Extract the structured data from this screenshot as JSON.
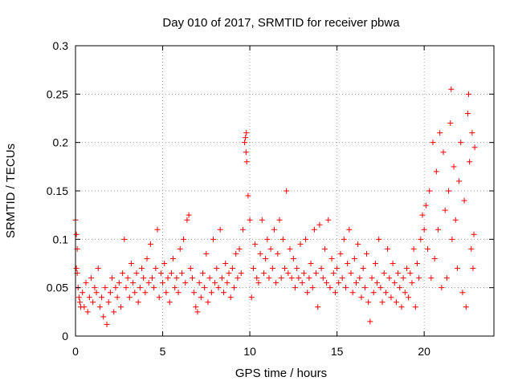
{
  "chart_data": {
    "type": "scatter",
    "title": "Day 010 of 2017, SRMTID for receiver pbwa",
    "xlabel": "GPS time / hours",
    "ylabel": "SRMTID / TECUs",
    "xlim": [
      0,
      24
    ],
    "ylim": [
      0,
      0.3
    ],
    "xticks": [
      0,
      5,
      10,
      15,
      20
    ],
    "yticks": [
      0,
      0.05,
      0.1,
      0.15,
      0.2,
      0.25,
      0.3
    ],
    "xtick_labels": [
      "0",
      "5",
      "10",
      "15",
      "20"
    ],
    "ytick_labels": [
      "0",
      "0.05",
      "0.1",
      "0.15",
      "0.2",
      "0.25",
      "0.3"
    ],
    "grid": true,
    "marker": "+",
    "color": "#ff0000",
    "series": [
      {
        "name": "SRMTID",
        "points": [
          [
            0.0,
            0.12
          ],
          [
            0.05,
            0.105
          ],
          [
            0.1,
            0.09
          ],
          [
            0.05,
            0.07
          ],
          [
            0.1,
            0.065
          ],
          [
            0.15,
            0.05
          ],
          [
            0.2,
            0.04
          ],
          [
            0.25,
            0.035
          ],
          [
            0.3,
            0.03
          ],
          [
            0.4,
            0.045
          ],
          [
            0.5,
            0.03
          ],
          [
            0.6,
            0.055
          ],
          [
            0.7,
            0.025
          ],
          [
            0.8,
            0.04
          ],
          [
            0.9,
            0.06
          ],
          [
            1.0,
            0.035
          ],
          [
            1.1,
            0.05
          ],
          [
            1.2,
            0.045
          ],
          [
            1.3,
            0.07
          ],
          [
            1.4,
            0.03
          ],
          [
            1.5,
            0.04
          ],
          [
            1.6,
            0.02
          ],
          [
            1.7,
            0.05
          ],
          [
            1.8,
            0.012
          ],
          [
            1.9,
            0.035
          ],
          [
            2.0,
            0.045
          ],
          [
            2.1,
            0.06
          ],
          [
            2.2,
            0.025
          ],
          [
            2.3,
            0.05
          ],
          [
            2.4,
            0.04
          ],
          [
            2.5,
            0.055
          ],
          [
            2.6,
            0.03
          ],
          [
            2.7,
            0.065
          ],
          [
            2.8,
            0.1
          ],
          [
            2.9,
            0.05
          ],
          [
            3.0,
            0.06
          ],
          [
            3.1,
            0.04
          ],
          [
            3.2,
            0.075
          ],
          [
            3.3,
            0.055
          ],
          [
            3.4,
            0.045
          ],
          [
            3.5,
            0.065
          ],
          [
            3.6,
            0.035
          ],
          [
            3.7,
            0.05
          ],
          [
            3.8,
            0.07
          ],
          [
            3.9,
            0.06
          ],
          [
            4.0,
            0.045
          ],
          [
            4.1,
            0.08
          ],
          [
            4.2,
            0.055
          ],
          [
            4.3,
            0.095
          ],
          [
            4.4,
            0.06
          ],
          [
            4.5,
            0.05
          ],
          [
            4.6,
            0.07
          ],
          [
            4.7,
            0.11
          ],
          [
            4.8,
            0.04
          ],
          [
            4.9,
            0.065
          ],
          [
            5.0,
            0.055
          ],
          [
            5.1,
            0.075
          ],
          [
            5.2,
            0.045
          ],
          [
            5.3,
            0.06
          ],
          [
            5.4,
            0.035
          ],
          [
            5.5,
            0.065
          ],
          [
            5.6,
            0.08
          ],
          [
            5.7,
            0.05
          ],
          [
            5.8,
            0.06
          ],
          [
            5.9,
            0.045
          ],
          [
            6.0,
            0.09
          ],
          [
            6.1,
            0.065
          ],
          [
            6.2,
            0.1
          ],
          [
            6.3,
            0.055
          ],
          [
            6.4,
            0.12
          ],
          [
            6.5,
            0.125
          ],
          [
            6.6,
            0.07
          ],
          [
            6.7,
            0.06
          ],
          [
            6.8,
            0.045
          ],
          [
            6.9,
            0.03
          ],
          [
            7.0,
            0.025
          ],
          [
            7.1,
            0.055
          ],
          [
            7.2,
            0.04
          ],
          [
            7.3,
            0.065
          ],
          [
            7.4,
            0.05
          ],
          [
            7.5,
            0.085
          ],
          [
            7.6,
            0.035
          ],
          [
            7.7,
            0.06
          ],
          [
            7.8,
            0.045
          ],
          [
            7.9,
            0.1
          ],
          [
            8.0,
            0.055
          ],
          [
            8.1,
            0.07
          ],
          [
            8.2,
            0.05
          ],
          [
            8.3,
            0.11
          ],
          [
            8.4,
            0.06
          ],
          [
            8.5,
            0.045
          ],
          [
            8.6,
            0.075
          ],
          [
            8.7,
            0.055
          ],
          [
            8.8,
            0.065
          ],
          [
            8.9,
            0.04
          ],
          [
            9.0,
            0.07
          ],
          [
            9.1,
            0.05
          ],
          [
            9.2,
            0.085
          ],
          [
            9.3,
            0.06
          ],
          [
            9.4,
            0.09
          ],
          [
            9.5,
            0.065
          ],
          [
            9.6,
            0.11
          ],
          [
            9.7,
            0.2
          ],
          [
            9.75,
            0.205
          ],
          [
            9.8,
            0.21
          ],
          [
            9.78,
            0.19
          ],
          [
            9.82,
            0.18
          ],
          [
            9.9,
            0.145
          ],
          [
            10.0,
            0.12
          ],
          [
            10.1,
            0.04
          ],
          [
            10.2,
            0.07
          ],
          [
            10.3,
            0.095
          ],
          [
            10.4,
            0.06
          ],
          [
            10.5,
            0.055
          ],
          [
            10.6,
            0.085
          ],
          [
            10.7,
            0.12
          ],
          [
            10.8,
            0.065
          ],
          [
            10.9,
            0.08
          ],
          [
            11.0,
            0.1
          ],
          [
            11.1,
            0.06
          ],
          [
            11.2,
            0.09
          ],
          [
            11.3,
            0.07
          ],
          [
            11.4,
            0.11
          ],
          [
            11.5,
            0.055
          ],
          [
            11.6,
            0.085
          ],
          [
            11.7,
            0.12
          ],
          [
            11.8,
            0.06
          ],
          [
            11.9,
            0.1
          ],
          [
            12.0,
            0.07
          ],
          [
            12.1,
            0.15
          ],
          [
            12.2,
            0.065
          ],
          [
            12.3,
            0.09
          ],
          [
            12.4,
            0.06
          ],
          [
            12.5,
            0.08
          ],
          [
            12.6,
            0.05
          ],
          [
            12.7,
            0.07
          ],
          [
            12.8,
            0.06
          ],
          [
            12.9,
            0.095
          ],
          [
            13.0,
            0.055
          ],
          [
            13.1,
            0.065
          ],
          [
            13.2,
            0.1
          ],
          [
            13.3,
            0.045
          ],
          [
            13.4,
            0.06
          ],
          [
            13.5,
            0.075
          ],
          [
            13.6,
            0.05
          ],
          [
            13.7,
            0.11
          ],
          [
            13.8,
            0.065
          ],
          [
            13.9,
            0.03
          ],
          [
            14.0,
            0.115
          ],
          [
            14.1,
            0.07
          ],
          [
            14.2,
            0.06
          ],
          [
            14.3,
            0.09
          ],
          [
            14.4,
            0.055
          ],
          [
            14.5,
            0.12
          ],
          [
            14.6,
            0.05
          ],
          [
            14.7,
            0.08
          ],
          [
            14.8,
            0.065
          ],
          [
            14.9,
            0.045
          ],
          [
            15.0,
            0.07
          ],
          [
            15.1,
            0.055
          ],
          [
            15.2,
            0.085
          ],
          [
            15.3,
            0.06
          ],
          [
            15.4,
            0.1
          ],
          [
            15.5,
            0.05
          ],
          [
            15.6,
            0.075
          ],
          [
            15.7,
            0.11
          ],
          [
            15.8,
            0.065
          ],
          [
            15.9,
            0.045
          ],
          [
            16.0,
            0.08
          ],
          [
            16.1,
            0.055
          ],
          [
            16.2,
            0.095
          ],
          [
            16.3,
            0.06
          ],
          [
            16.4,
            0.04
          ],
          [
            16.5,
            0.07
          ],
          [
            16.6,
            0.05
          ],
          [
            16.7,
            0.085
          ],
          [
            16.8,
            0.035
          ],
          [
            16.9,
            0.015
          ],
          [
            17.0,
            0.06
          ],
          [
            17.1,
            0.045
          ],
          [
            17.2,
            0.075
          ],
          [
            17.3,
            0.055
          ],
          [
            17.4,
            0.1
          ],
          [
            17.5,
            0.05
          ],
          [
            17.6,
            0.035
          ],
          [
            17.7,
            0.065
          ],
          [
            17.8,
            0.045
          ],
          [
            17.9,
            0.09
          ],
          [
            18.0,
            0.06
          ],
          [
            18.1,
            0.04
          ],
          [
            18.2,
            0.075
          ],
          [
            18.3,
            0.055
          ],
          [
            18.4,
            0.035
          ],
          [
            18.5,
            0.065
          ],
          [
            18.6,
            0.05
          ],
          [
            18.7,
            0.03
          ],
          [
            18.8,
            0.06
          ],
          [
            18.9,
            0.045
          ],
          [
            19.0,
            0.07
          ],
          [
            19.1,
            0.04
          ],
          [
            19.2,
            0.065
          ],
          [
            19.3,
            0.055
          ],
          [
            19.4,
            0.09
          ],
          [
            19.5,
            0.03
          ],
          [
            19.6,
            0.075
          ],
          [
            19.7,
            0.06
          ],
          [
            19.8,
            0.1
          ],
          [
            19.9,
            0.125
          ],
          [
            20.0,
            0.11
          ],
          [
            20.1,
            0.135
          ],
          [
            20.2,
            0.09
          ],
          [
            20.3,
            0.15
          ],
          [
            20.4,
            0.06
          ],
          [
            20.5,
            0.2
          ],
          [
            20.6,
            0.08
          ],
          [
            20.7,
            0.17
          ],
          [
            20.8,
            0.11
          ],
          [
            20.9,
            0.21
          ],
          [
            21.0,
            0.05
          ],
          [
            21.1,
            0.19
          ],
          [
            21.2,
            0.13
          ],
          [
            21.3,
            0.06
          ],
          [
            21.4,
            0.15
          ],
          [
            21.5,
            0.22
          ],
          [
            21.55,
            0.255
          ],
          [
            21.6,
            0.1
          ],
          [
            21.7,
            0.175
          ],
          [
            21.8,
            0.12
          ],
          [
            21.9,
            0.07
          ],
          [
            22.0,
            0.16
          ],
          [
            22.1,
            0.2
          ],
          [
            22.2,
            0.045
          ],
          [
            22.3,
            0.14
          ],
          [
            22.4,
            0.03
          ],
          [
            22.5,
            0.23
          ],
          [
            22.55,
            0.25
          ],
          [
            22.6,
            0.18
          ],
          [
            22.7,
            0.09
          ],
          [
            22.75,
            0.21
          ],
          [
            22.8,
            0.07
          ],
          [
            22.85,
            0.105
          ],
          [
            22.9,
            0.195
          ]
        ]
      }
    ]
  }
}
